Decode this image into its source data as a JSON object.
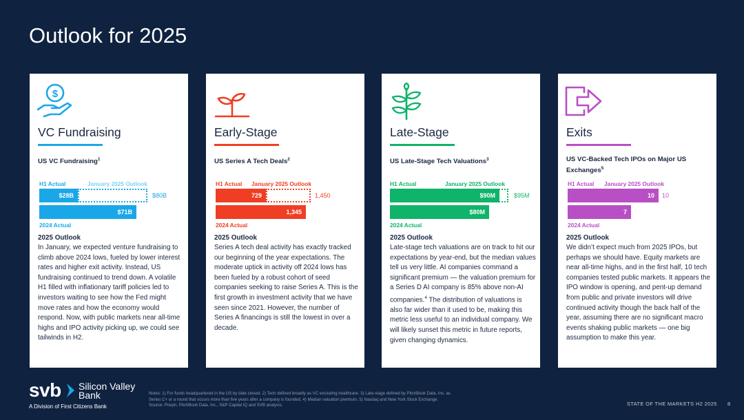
{
  "page": {
    "title": "Outlook for 2025"
  },
  "colors": {
    "background": "#0f2340",
    "vc": "#1aa7e8",
    "early": "#ef3e23",
    "late": "#0fb36a",
    "exits": "#b84fc4"
  },
  "cards": [
    {
      "icon": "money-hand-icon",
      "title": "VC Fundraising",
      "subtitle": "US VC Fundraising",
      "subtitle_sup": "1",
      "legend_actual": "H1 Actual",
      "legend_outlook": "January 2025 Outlook",
      "bar1_value": "$28B",
      "bar1_fraction": 0.35,
      "outlook_value": "$80B",
      "bar2_value": "$71B",
      "bar2_label": "2024 Actual",
      "outlook_heading": "2025 Outlook",
      "body": "In January, we expected venture fundraising to climb above 2024 lows, fueled by lower interest rates and higher exit activity. Instead, US fundraising continued to trend down. A volatile H1 filled with inflationary tariff policies led to investors waiting to see how the Fed might move rates and how the economy would respond. Now, with public markets near all-time highs and IPO activity picking up, we could see tailwinds in H2."
    },
    {
      "icon": "sprout-icon",
      "title": "Early-Stage",
      "subtitle": "US Series A Tech Deals",
      "subtitle_sup": "2",
      "legend_actual": "H1 Actual",
      "legend_outlook": "January 2025 Outlook",
      "bar1_value": "729",
      "bar1_fraction": 0.5,
      "outlook_value": "1,450",
      "bar2_value": "1,345",
      "bar2_label": "2024 Actual",
      "outlook_heading": "2025 Outlook",
      "body": "Series A tech deal activity has exactly tracked our beginning of the year expectations. The moderate uptick in activity off 2024 lows has been fueled by a robust cohort of seed companies seeking to raise Series A. This is the first growth in investment activity that we have seen since 2021. However, the number of Series A financings is still the lowest in over a decade."
    },
    {
      "icon": "plant-icon",
      "title": "Late-Stage",
      "subtitle": "US Late-Stage Tech Valuations",
      "subtitle_sup": "3",
      "legend_actual": "H1 Actual",
      "legend_outlook": "January 2025 Outlook",
      "bar1_value": "$90M",
      "bar1_fraction": 0.95,
      "outlook_value": "$95M",
      "bar2_value": "$80M",
      "bar2_label": "2024 Actual",
      "outlook_heading": "2025 Outlook",
      "body_parts": [
        "Late-stage tech valuations are on track to hit our expectations by year-end, but the median values tell us very little. AI companies command a significant premium — the valuation premium for a Series D AI company is 85% above non-AI companies.",
        "4",
        " The distribution of valuations is also far wider than it used to be, making this metric less useful to an individual company. We will likely sunset this metric in future reports, given changing dynamics."
      ]
    },
    {
      "icon": "exit-arrow-icon",
      "title": "Exits",
      "subtitle": "US VC-Backed Tech IPOs on Major US Exchanges",
      "subtitle_sup": "5",
      "legend_actual": "H1 Actual",
      "legend_outlook": "January 2025 Outlook",
      "bar1_value": "10",
      "bar1_fraction": 1.0,
      "outlook_value": "10",
      "bar2_value": "7",
      "bar2_label": "2024 Actual",
      "outlook_heading": "2025 Outlook",
      "body": "We didn’t expect much from 2025 IPOs, but perhaps we should have. Equity markets are near all-time highs, and in the first half, 10 tech companies tested public markets. It appears the IPO window is opening, and pent-up demand from public and private investors will drive continued activity though the back half of the year, assuming there are no significant macro events shaking public markets — one big assumption to make this year."
    }
  ],
  "logo": {
    "word": "svb",
    "name_line1": "Silicon Valley",
    "name_line2": "Bank",
    "sub": "A Division of First Citizens Bank"
  },
  "notes": {
    "line1": "Notes: 1) For funds headquartered in the US by date closed. 2) Tech defined broadly as VC excluding healthcare. 3) Late-stage defined by PitchBook Data, Inc. as",
    "line2": "Series C+ or a round that occurs more than five years after a company is founded. 4) Median valuation premium. 5) Nasdaq and New York Stock Exchange.",
    "line3": "Source: Preqin, PitchBook Data, Inc., S&P Capital IQ and SVB analysis."
  },
  "footer": {
    "text": "STATE OF THE MARKETS H2 2025",
    "page": "8"
  }
}
